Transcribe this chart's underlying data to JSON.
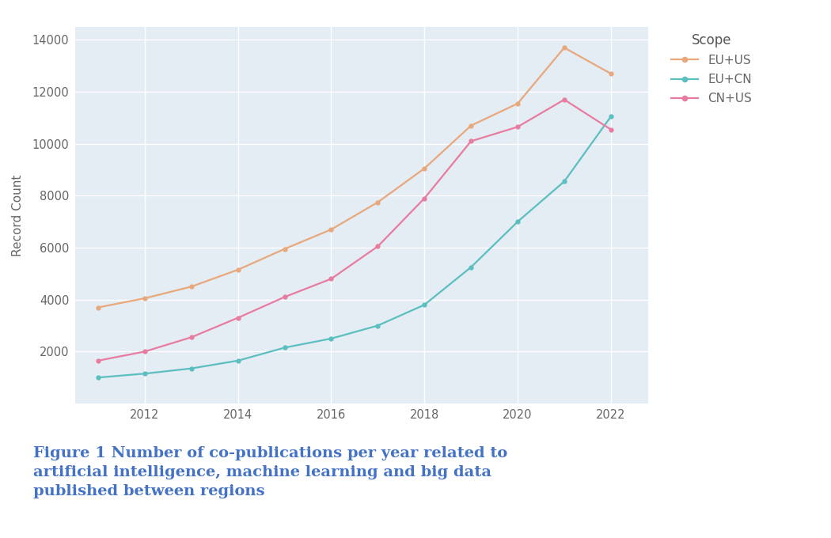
{
  "years": [
    2011,
    2012,
    2013,
    2014,
    2015,
    2016,
    2017,
    2018,
    2019,
    2020,
    2021,
    2022
  ],
  "eu_us": [
    3700,
    4050,
    4500,
    5150,
    5950,
    6700,
    7750,
    9050,
    10700,
    11550,
    13700,
    12700
  ],
  "eu_cn": [
    1000,
    1150,
    1350,
    1650,
    2150,
    2500,
    3000,
    3800,
    5250,
    7000,
    8550,
    11050
  ],
  "cn_us": [
    1650,
    2000,
    2550,
    3300,
    4100,
    4800,
    6050,
    7900,
    10100,
    10650,
    11700,
    10550
  ],
  "eu_us_color": "#E8A87C",
  "eu_cn_color": "#5BBFBF",
  "cn_us_color": "#E87CA0",
  "bg_color": "#E4ECF4",
  "grid_color": "#FFFFFF",
  "ylabel": "Record Count",
  "caption_line1": "Figure 1 Number of co-publications per year related to",
  "caption_line2": "artificial intelligence, machine learning and big data",
  "caption_line3": "published between regions",
  "caption_color": "#4472C4",
  "ylim": [
    0,
    14500
  ],
  "yticks": [
    2000,
    4000,
    6000,
    8000,
    10000,
    12000,
    14000
  ],
  "xtick_labels": [
    "2012",
    "2014",
    "2016",
    "2018",
    "2020",
    "2022"
  ],
  "xtick_positions": [
    2012,
    2014,
    2016,
    2018,
    2020,
    2022
  ]
}
